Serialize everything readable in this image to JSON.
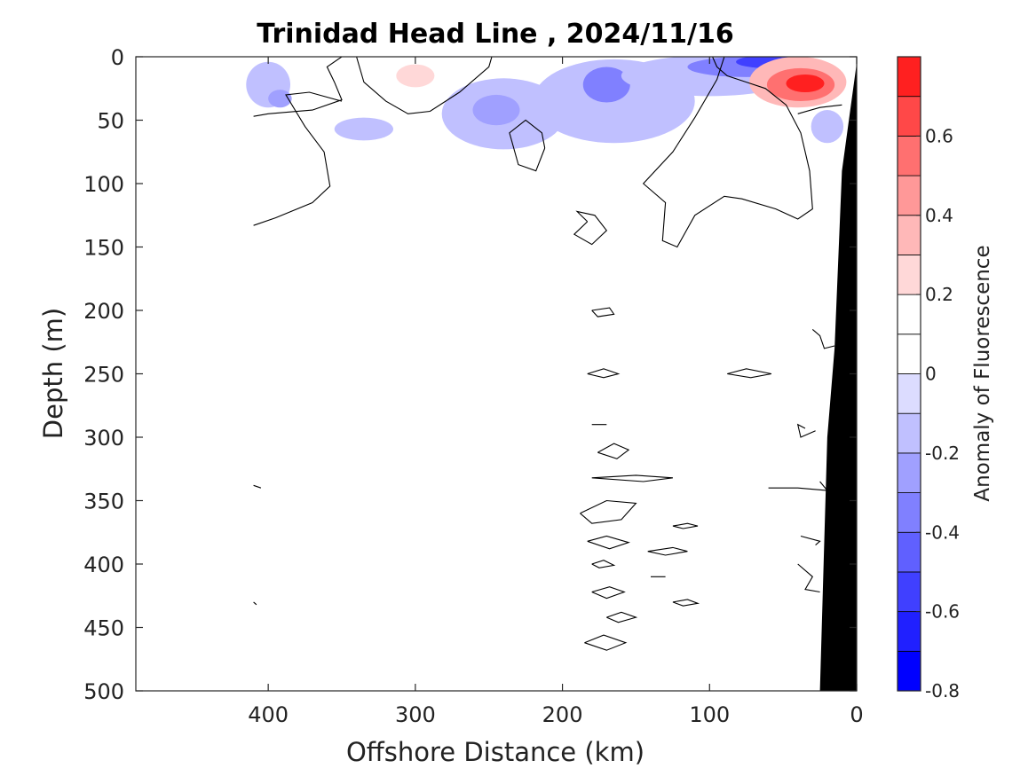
{
  "chart_data": {
    "type": "heatmap",
    "title": "Trinidad Head Line , 2024/11/16",
    "xlabel": "Offshore Distance (km)",
    "ylabel": "Depth (m)",
    "xlim": [
      490,
      0
    ],
    "ylim": [
      500,
      0
    ],
    "x_reversed": true,
    "y_reversed": true,
    "x_ticks": [
      400,
      300,
      200,
      100,
      0
    ],
    "x_tick_labels": [
      "400",
      "300",
      "200",
      "100",
      "0"
    ],
    "y_ticks": [
      0,
      50,
      100,
      150,
      200,
      250,
      300,
      350,
      400,
      450,
      500
    ],
    "y_tick_labels": [
      "0",
      "50",
      "100",
      "150",
      "200",
      "250",
      "300",
      "350",
      "400",
      "450",
      "500"
    ],
    "colorbar": {
      "label": "Anomaly of Fluorescence",
      "range": [
        -0.8,
        0.8
      ],
      "levels": [
        -0.8,
        -0.7,
        -0.6,
        -0.5,
        -0.4,
        -0.3,
        -0.2,
        -0.1,
        0,
        0.1,
        0.2,
        0.3,
        0.4,
        0.5,
        0.6,
        0.7,
        0.8
      ],
      "colors": [
        "#0000ff",
        "#2020ff",
        "#4040ff",
        "#6060ff",
        "#8080ff",
        "#a0a0ff",
        "#c0c0ff",
        "#dcdcff",
        "#ffffff",
        "#ffffff",
        "#ffd8d8",
        "#ffb8b8",
        "#ff9898",
        "#ff7070",
        "#ff4848",
        "#ff2020",
        "#ff0000"
      ],
      "tick_values": [
        -0.8,
        -0.6,
        -0.4,
        -0.2,
        0,
        0.2,
        0.4,
        0.6
      ],
      "tick_labels": [
        "-0.8",
        "-0.6",
        "-0.4",
        "-0.2",
        "0",
        "0.2",
        "0.4",
        "0.6"
      ]
    },
    "anomaly_patches": [
      {
        "name": "neg-offshore",
        "x": 400,
        "y": 22,
        "rx": 15,
        "ry": 18,
        "value": -0.15
      },
      {
        "name": "neg-offshore-core",
        "x": 392,
        "y": 33,
        "rx": 8,
        "ry": 7,
        "value": -0.25
      },
      {
        "name": "pos-offshore-deep",
        "x": 393,
        "y": 70,
        "rx": 15,
        "ry": 15,
        "value": 0.15
      },
      {
        "name": "pos-near-300",
        "x": 285,
        "y": 14,
        "rx": 38,
        "ry": 13,
        "value": 0.15
      },
      {
        "name": "pos-near-300-core",
        "x": 300,
        "y": 15,
        "rx": 13,
        "ry": 9,
        "value": 0.25
      },
      {
        "name": "neg-band-west",
        "x": 240,
        "y": 45,
        "rx": 42,
        "ry": 28,
        "value": -0.15
      },
      {
        "name": "neg-band-west-core",
        "x": 245,
        "y": 42,
        "rx": 16,
        "ry": 12,
        "value": -0.25
      },
      {
        "name": "neg-band-mid",
        "x": 165,
        "y": 35,
        "rx": 55,
        "ry": 33,
        "value": -0.2
      },
      {
        "name": "neg-band-mid-core",
        "x": 170,
        "y": 22,
        "rx": 16,
        "ry": 14,
        "value": -0.35
      },
      {
        "name": "neg-near-330",
        "x": 335,
        "y": 57,
        "rx": 20,
        "ry": 9,
        "value": -0.12
      },
      {
        "name": "neg-nearshore",
        "x": 100,
        "y": 15,
        "rx": 60,
        "ry": 16,
        "value": -0.2
      },
      {
        "name": "neg-nearshore-core",
        "x": 75,
        "y": 8,
        "rx": 40,
        "ry": 8,
        "value": -0.35
      },
      {
        "name": "neg-nearshore-peak",
        "x": 60,
        "y": 4,
        "rx": 22,
        "ry": 5,
        "value": -0.55
      },
      {
        "name": "pos-nearshore",
        "x": 40,
        "y": 20,
        "rx": 33,
        "ry": 20,
        "value": 0.3
      },
      {
        "name": "pos-nearshore-mid",
        "x": 38,
        "y": 22,
        "rx": 23,
        "ry": 13,
        "value": 0.5
      },
      {
        "name": "pos-nearshore-peak",
        "x": 35,
        "y": 21,
        "rx": 13,
        "ry": 7,
        "value": 0.7
      },
      {
        "name": "pos-small-80",
        "x": 80,
        "y": 52,
        "rx": 14,
        "ry": 7,
        "value": 0.15
      },
      {
        "name": "neg-coast",
        "x": 20,
        "y": 55,
        "rx": 11,
        "ry": 13,
        "value": -0.15
      }
    ],
    "zero_contours": [
      [
        [
          410,
          47
        ],
        [
          400,
          45
        ],
        [
          370,
          42
        ],
        [
          350,
          34
        ],
        [
          355,
          20
        ],
        [
          360,
          8
        ],
        [
          350,
          0
        ]
      ],
      [
        [
          410,
          133
        ],
        [
          395,
          127
        ],
        [
          370,
          115
        ],
        [
          358,
          102
        ],
        [
          362,
          75
        ],
        [
          375,
          55
        ],
        [
          388,
          30
        ],
        [
          372,
          28
        ],
        [
          350,
          35
        ]
      ],
      [
        [
          340,
          0
        ],
        [
          335,
          20
        ],
        [
          320,
          35
        ],
        [
          305,
          45
        ],
        [
          290,
          43
        ],
        [
          270,
          28
        ],
        [
          250,
          8
        ],
        [
          248,
          0
        ]
      ],
      [
        [
          212,
          72
        ],
        [
          218,
          90
        ],
        [
          230,
          85
        ],
        [
          236,
          60
        ],
        [
          225,
          50
        ],
        [
          214,
          60
        ],
        [
          212,
          72
        ]
      ],
      [
        [
          183,
          130
        ],
        [
          192,
          140
        ],
        [
          180,
          148
        ],
        [
          170,
          137
        ],
        [
          178,
          125
        ],
        [
          190,
          122
        ],
        [
          183,
          130
        ]
      ],
      [
        [
          90,
          0
        ],
        [
          95,
          18
        ],
        [
          110,
          48
        ],
        [
          125,
          75
        ],
        [
          145,
          100
        ],
        [
          130,
          115
        ],
        [
          132,
          145
        ],
        [
          122,
          150
        ],
        [
          110,
          125
        ],
        [
          90,
          110
        ],
        [
          78,
          112
        ],
        [
          55,
          120
        ],
        [
          40,
          128
        ],
        [
          30,
          120
        ],
        [
          32,
          90
        ],
        [
          38,
          60
        ],
        [
          48,
          38
        ],
        [
          62,
          25
        ],
        [
          75,
          20
        ],
        [
          88,
          15
        ],
        [
          95,
          8
        ],
        [
          98,
          0
        ]
      ],
      [
        [
          40,
          45
        ],
        [
          25,
          40
        ],
        [
          10,
          38
        ]
      ],
      [
        [
          180,
          200
        ],
        [
          168,
          198
        ],
        [
          165,
          203
        ],
        [
          176,
          205
        ],
        [
          180,
          200
        ]
      ],
      [
        [
          183,
          250
        ],
        [
          172,
          246
        ],
        [
          162,
          250
        ],
        [
          172,
          253
        ],
        [
          183,
          250
        ]
      ],
      [
        [
          88,
          250
        ],
        [
          75,
          246
        ],
        [
          58,
          250
        ],
        [
          72,
          253
        ],
        [
          88,
          250
        ]
      ],
      [
        [
          180,
          290
        ],
        [
          170,
          290
        ]
      ],
      [
        [
          176,
          312
        ],
        [
          165,
          305
        ],
        [
          155,
          310
        ],
        [
          163,
          317
        ],
        [
          176,
          312
        ]
      ],
      [
        [
          180,
          332
        ],
        [
          150,
          330
        ],
        [
          125,
          332
        ],
        [
          145,
          335
        ],
        [
          180,
          332
        ]
      ],
      [
        [
          188,
          360
        ],
        [
          170,
          350
        ],
        [
          150,
          352
        ],
        [
          160,
          365
        ],
        [
          180,
          368
        ],
        [
          188,
          360
        ]
      ],
      [
        [
          183,
          382
        ],
        [
          170,
          378
        ],
        [
          155,
          383
        ],
        [
          168,
          388
        ],
        [
          183,
          382
        ]
      ],
      [
        [
          142,
          390
        ],
        [
          125,
          387
        ],
        [
          115,
          390
        ],
        [
          130,
          393
        ],
        [
          142,
          390
        ]
      ],
      [
        [
          125,
          370
        ],
        [
          115,
          368
        ],
        [
          108,
          370
        ],
        [
          118,
          372
        ],
        [
          125,
          370
        ]
      ],
      [
        [
          180,
          400
        ],
        [
          172,
          397
        ],
        [
          165,
          401
        ],
        [
          175,
          403
        ],
        [
          180,
          400
        ]
      ],
      [
        [
          140,
          410
        ],
        [
          130,
          410
        ]
      ],
      [
        [
          180,
          422
        ],
        [
          168,
          418
        ],
        [
          158,
          422
        ],
        [
          170,
          427
        ],
        [
          180,
          422
        ]
      ],
      [
        [
          125,
          430
        ],
        [
          115,
          428
        ],
        [
          108,
          431
        ],
        [
          118,
          433
        ],
        [
          125,
          430
        ]
      ],
      [
        [
          170,
          442
        ],
        [
          160,
          438
        ],
        [
          150,
          442
        ],
        [
          162,
          446
        ],
        [
          170,
          442
        ]
      ],
      [
        [
          185,
          462
        ],
        [
          172,
          456
        ],
        [
          157,
          462
        ],
        [
          170,
          468
        ],
        [
          185,
          462
        ]
      ],
      [
        [
          30,
          215
        ],
        [
          25,
          220
        ],
        [
          22,
          230
        ],
        [
          15,
          228
        ]
      ],
      [
        [
          35,
          293
        ],
        [
          40,
          290
        ],
        [
          38,
          300
        ],
        [
          28,
          295
        ]
      ],
      [
        [
          60,
          340
        ],
        [
          40,
          340
        ],
        [
          20,
          342
        ],
        [
          25,
          335
        ]
      ],
      [
        [
          38,
          378
        ],
        [
          25,
          382
        ],
        [
          28,
          385
        ]
      ],
      [
        [
          40,
          400
        ],
        [
          30,
          410
        ],
        [
          35,
          420
        ],
        [
          25,
          422
        ]
      ],
      [
        [
          410,
          338
        ],
        [
          405,
          340
        ]
      ],
      [
        [
          410,
          430
        ],
        [
          408,
          432
        ]
      ]
    ],
    "bathymetry": [
      [
        0,
        5
      ],
      [
        10,
        90
      ],
      [
        15,
        230
      ],
      [
        20,
        300
      ],
      [
        25,
        500
      ],
      [
        0,
        500
      ]
    ]
  }
}
